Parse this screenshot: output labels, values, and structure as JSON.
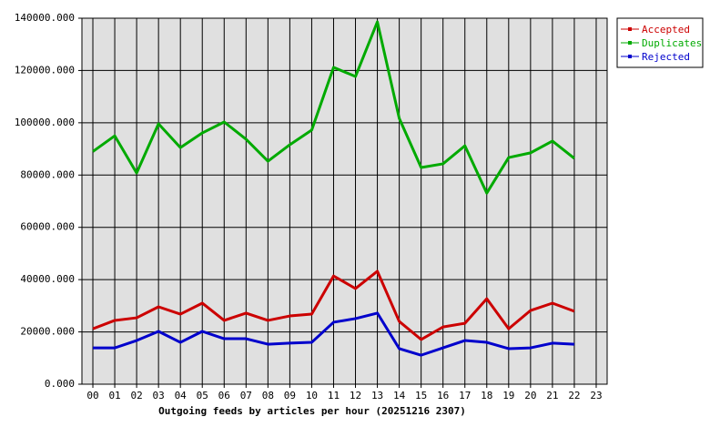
{
  "chart_data": {
    "type": "line",
    "x_label": "Outgoing feeds by articles per hour (20251216 2307)",
    "categories": [
      "00",
      "01",
      "02",
      "03",
      "04",
      "05",
      "06",
      "07",
      "08",
      "09",
      "10",
      "11",
      "12",
      "13",
      "14",
      "15",
      "16",
      "17",
      "18",
      "19",
      "20",
      "21",
      "22",
      "23"
    ],
    "series": [
      {
        "name": "Accepted",
        "color": "#cc0000",
        "values": [
          21200,
          24400,
          25400,
          29600,
          26800,
          31000,
          24400,
          27200,
          24400,
          26100,
          26800,
          41400,
          36600,
          43200,
          24000,
          17100,
          21900,
          23300,
          32700,
          21200,
          28200,
          31000,
          27900,
          null
        ]
      },
      {
        "name": "Duplicates",
        "color": "#00aa00",
        "values": [
          89000,
          95000,
          80800,
          99600,
          90500,
          96100,
          100300,
          93700,
          85300,
          91600,
          97200,
          121200,
          117700,
          138600,
          101700,
          82900,
          84300,
          91200,
          73100,
          86700,
          88500,
          93000,
          86400,
          null
        ]
      },
      {
        "name": "Rejected",
        "color": "#0000cc",
        "values": [
          13900,
          13900,
          16700,
          20200,
          16000,
          20200,
          17400,
          17400,
          15300,
          15700,
          16000,
          23700,
          25100,
          27200,
          13600,
          11100,
          13900,
          16700,
          16000,
          13600,
          13900,
          15700,
          15300,
          null
        ]
      }
    ],
    "ylim": [
      0,
      140000
    ],
    "yticks": [
      {
        "value": 0,
        "label": "0.000"
      },
      {
        "value": 20000,
        "label": "20000.000"
      },
      {
        "value": 40000,
        "label": "40000.000"
      },
      {
        "value": 60000,
        "label": "60000.000"
      },
      {
        "value": 80000,
        "label": "80000.000"
      },
      {
        "value": 100000,
        "label": "100000.000"
      },
      {
        "value": 120000,
        "label": "120000.000"
      },
      {
        "value": 140000,
        "label": "140000.000"
      }
    ],
    "grid": true,
    "plot_background": "#e0e0e0",
    "legend_position": "right"
  }
}
